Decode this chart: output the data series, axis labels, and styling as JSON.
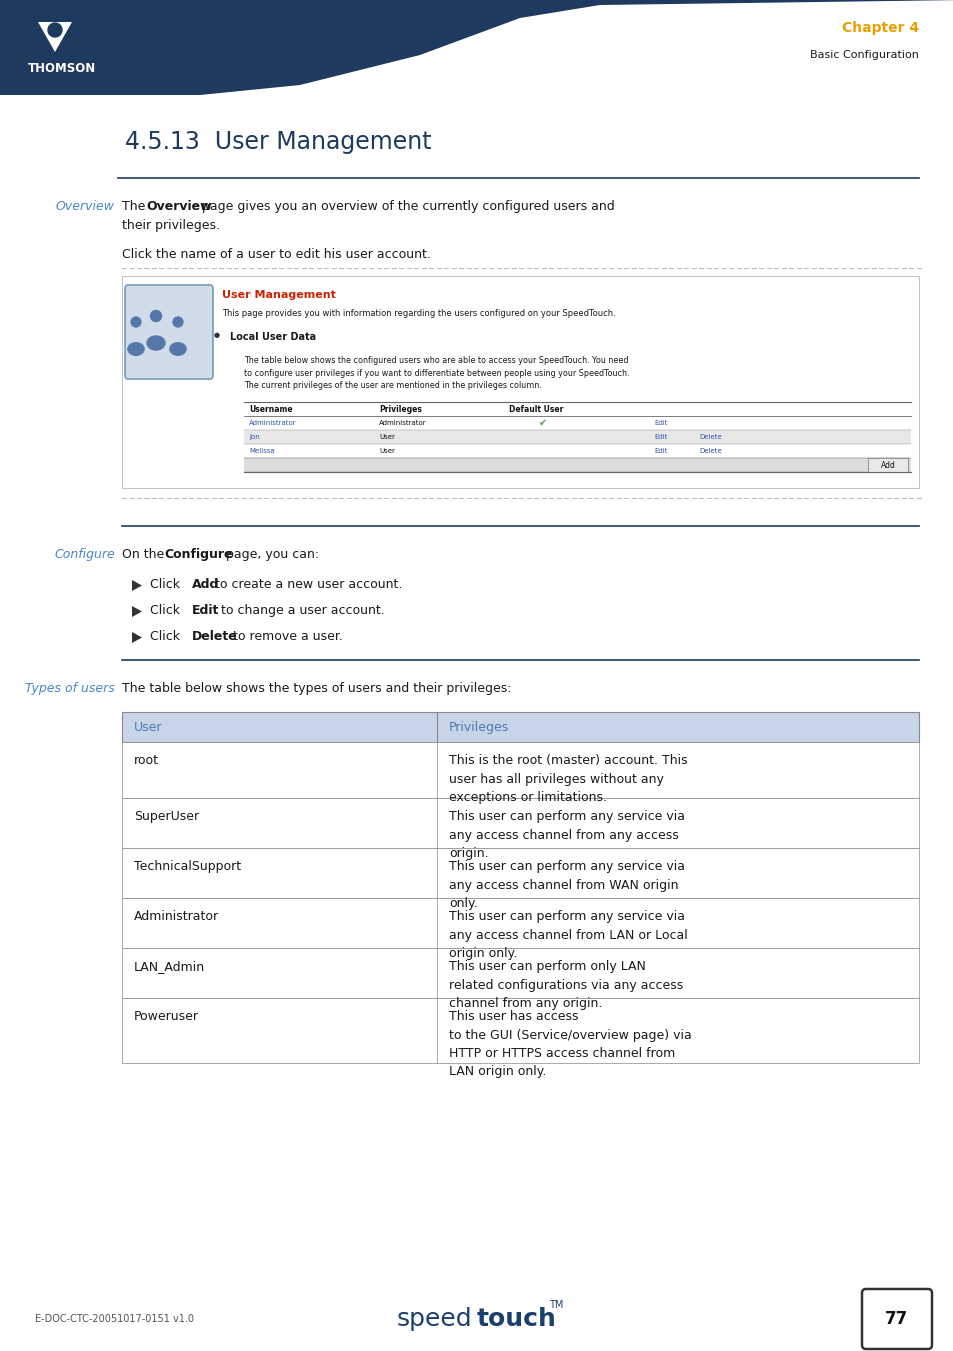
{
  "page_width": 9.54,
  "page_height": 13.51,
  "bg_color": "#ffffff",
  "header_bg": "#1e3a5f",
  "chapter_color": "#e8a000",
  "chapter_text": "Chapter 4",
  "subchapter_text": "Basic Configuration",
  "title_text": "4.5.13  User Management",
  "title_color": "#1e3a5f",
  "section_label_color": "#4a86c8",
  "body_text_color": "#1a1a1a",
  "overview_label": "Overview",
  "configure_label": "Configure",
  "types_label": "Types of users",
  "types_intro": "The table below shows the types of users and their privileges:",
  "types_table_header": [
    "User",
    "Privileges"
  ],
  "types_table_header_color": "#4a7ab5",
  "types_table_rows": [
    [
      "root",
      "This is the root (master) account. This\nuser has all privileges without any\nexceptions or limitations."
    ],
    [
      "SuperUser",
      "This user can perform any service via\nany access channel from any access\norigin."
    ],
    [
      "TechnicalSupport",
      "This user can perform any service via\nany access channel from WAN origin\nonly."
    ],
    [
      "Administrator",
      "This user can perform any service via\nany access channel from LAN or Local\norigin only."
    ],
    [
      "LAN_Admin",
      "This user can perform only LAN\nrelated configurations via any access\nchannel from any origin."
    ],
    [
      "Poweruser",
      "This user has access\nto the GUI (Service/overview page) via\nHTTP or HTTPS access channel from\nLAN origin only."
    ]
  ],
  "footer_doc": "E-DOC-CTC-20051017-0151 v1.0",
  "footer_page": "77",
  "line_color": "#1e3a5f",
  "dotted_line_color": "#bbbbbb",
  "table_header_bg": "#c8d4e8",
  "table_border_color": "#888888",
  "link_color": "#3355aa",
  "green_check_color": "#44aa44",
  "bullet_color": "#333333",
  "um_title_color": "#cc2200",
  "screenshot_border": "#aaaaaa"
}
